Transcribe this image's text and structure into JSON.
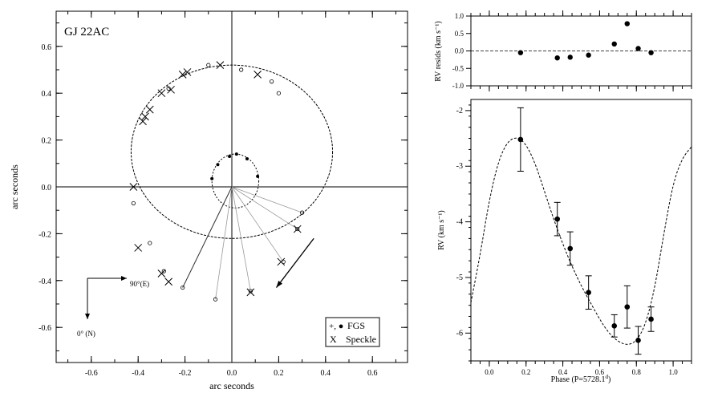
{
  "chart_data": [
    {
      "type": "scatter",
      "name_label": "GJ 22AC",
      "xlabel": "arc seconds",
      "ylabel": "arc seconds",
      "xlim": [
        -0.75,
        0.75
      ],
      "ylim": [
        0.75,
        -0.75
      ],
      "x_ticks": [
        -0.6,
        -0.4,
        -0.2,
        0.0,
        0.2,
        0.4,
        0.6
      ],
      "x_tick_labels": [
        "-0.6",
        "-0.4",
        "-0.2",
        "0.0",
        "0.2",
        "0.4",
        "0.6"
      ],
      "y_ticks": [
        -0.6,
        -0.4,
        -0.2,
        0.0,
        0.2,
        0.4,
        0.6
      ],
      "y_tick_labels": [
        "-0.6",
        "-0.4",
        "-0.2",
        "0.0",
        "0.2",
        "0.4",
        "0.6"
      ],
      "compass": {
        "east": "90°(E)",
        "north": "0° (N)"
      },
      "legend": [
        {
          "symbol": "+, ●",
          "label": "FGS"
        },
        {
          "symbol": "X",
          "label": "Speckle"
        }
      ],
      "legend_position": "bottom-right",
      "orbit_ellipse": {
        "cx": 0.0,
        "cy": 0.15,
        "rx": 0.43,
        "ry": 0.37
      },
      "inner_orbit_ellipse": {
        "cx": 0.015,
        "cy": 0.025,
        "rx": 0.1,
        "ry": 0.115
      },
      "fgs_outer": [
        [
          -0.07,
          -0.48
        ],
        [
          0.08,
          -0.445
        ],
        [
          0.22,
          -0.32
        ],
        [
          0.28,
          -0.18
        ],
        [
          0.3,
          -0.11
        ],
        [
          -0.21,
          -0.43
        ],
        [
          -0.29,
          -0.36
        ],
        [
          -0.35,
          -0.24
        ],
        [
          -0.42,
          -0.07
        ],
        [
          -0.27,
          0.42
        ],
        [
          -0.1,
          0.52
        ],
        [
          0.04,
          0.5
        ],
        [
          0.2,
          0.4
        ],
        [
          0.17,
          0.45
        ]
      ],
      "fgs_inner": [
        [
          -0.085,
          0.035
        ],
        [
          -0.06,
          0.095
        ],
        [
          -0.01,
          0.13
        ],
        [
          0.02,
          0.14
        ],
        [
          0.065,
          0.12
        ],
        [
          0.11,
          0.045
        ]
      ],
      "speckle": [
        [
          -0.27,
          -0.405
        ],
        [
          -0.3,
          -0.37
        ],
        [
          -0.4,
          -0.26
        ],
        [
          -0.42,
          0.0
        ],
        [
          -0.38,
          0.28
        ],
        [
          -0.37,
          0.3
        ],
        [
          -0.35,
          0.33
        ],
        [
          -0.3,
          0.4
        ],
        [
          -0.26,
          0.415
        ],
        [
          -0.21,
          0.48
        ],
        [
          -0.19,
          0.49
        ],
        [
          -0.05,
          0.52
        ],
        [
          0.11,
          0.48
        ],
        [
          0.08,
          -0.45
        ],
        [
          0.21,
          -0.32
        ],
        [
          0.28,
          -0.18
        ]
      ],
      "residual_lines_from_origin": [
        [
          -0.07,
          -0.48
        ],
        [
          0.08,
          -0.445
        ],
        [
          0.22,
          -0.32
        ],
        [
          0.28,
          -0.18
        ],
        [
          0.3,
          -0.11
        ],
        [
          -0.21,
          -0.43
        ]
      ],
      "direction_arrow": {
        "from": [
          0.35,
          -0.22
        ],
        "to": [
          0.19,
          -0.43
        ]
      }
    },
    {
      "type": "scatter",
      "ylabel": "RV resids (km s⁻¹)",
      "xlim": [
        -0.1,
        1.1
      ],
      "ylim": [
        -1.0,
        1.0
      ],
      "y_ticks": [
        -1.0,
        -0.5,
        0.0,
        0.5,
        1.0
      ],
      "y_tick_labels": [
        "-1.0",
        "-0.5",
        "0.0",
        "0.5",
        "1.0"
      ],
      "x": [
        0.17,
        0.37,
        0.44,
        0.54,
        0.68,
        0.75,
        0.81,
        0.88
      ],
      "y": [
        -0.05,
        -0.2,
        -0.18,
        -0.12,
        0.2,
        0.78,
        0.07,
        -0.05
      ]
    },
    {
      "type": "scatter",
      "xlabel": "Phase (P=5728.1",
      "xlabel_sup": "d",
      "xlabel_tail": ")",
      "ylabel": "RV (km s⁻¹)",
      "xlim": [
        -0.1,
        1.1
      ],
      "ylim": [
        -6.5,
        -1.8
      ],
      "x_ticks": [
        0.0,
        0.2,
        0.4,
        0.6,
        0.8,
        1.0
      ],
      "x_tick_labels": [
        "0.0",
        "0.2",
        "0.4",
        "0.6",
        "0.8",
        "1.0"
      ],
      "y_ticks": [
        -6,
        -5,
        -4,
        -3,
        -2
      ],
      "y_tick_labels": [
        "-6",
        "-5",
        "-4",
        "-3",
        "-2"
      ],
      "x": [
        0.17,
        0.37,
        0.44,
        0.54,
        0.68,
        0.75,
        0.81,
        0.88
      ],
      "y": [
        -2.52,
        -3.95,
        -4.48,
        -5.27,
        -5.87,
        -5.53,
        -6.13,
        -5.75
      ],
      "err": [
        0.57,
        0.3,
        0.3,
        0.3,
        0.2,
        0.38,
        0.25,
        0.22
      ],
      "model_curve": {
        "x": [
          -0.1,
          -0.05,
          0.0,
          0.05,
          0.1,
          0.15,
          0.2,
          0.25,
          0.3,
          0.35,
          0.4,
          0.45,
          0.5,
          0.55,
          0.6,
          0.65,
          0.7,
          0.75,
          0.8,
          0.85,
          0.9,
          0.95,
          1.0,
          1.05,
          1.1
        ],
        "y": [
          -5.45,
          -4.6,
          -3.6,
          -2.9,
          -2.55,
          -2.47,
          -2.6,
          -2.95,
          -3.45,
          -3.95,
          -4.4,
          -4.8,
          -5.15,
          -5.45,
          -5.75,
          -6.0,
          -6.15,
          -6.22,
          -6.15,
          -5.85,
          -5.2,
          -4.2,
          -3.3,
          -2.85,
          -2.65
        ]
      }
    }
  ]
}
